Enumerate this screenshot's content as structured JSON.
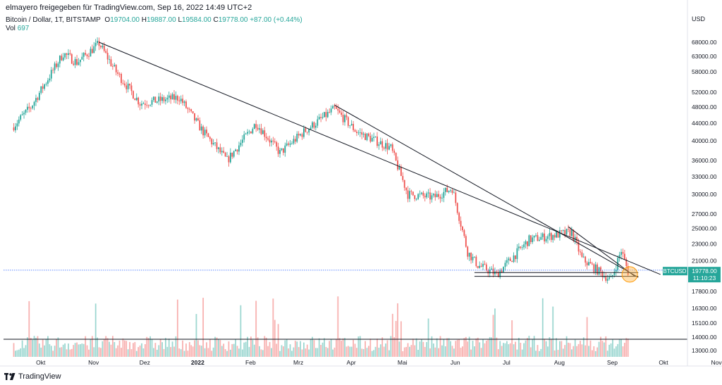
{
  "header": {
    "publish_line": "elmayero freigegeben für TradingView.com, Sep 16, 2022 14:49 UTC+2"
  },
  "legend": {
    "symbol": "Bitcoin / Dollar, 1T, BITSTAMP",
    "o_label": "O",
    "o_value": "19704.00",
    "h_label": "H",
    "h_value": "19887.00",
    "l_label": "L",
    "l_value": "19584.00",
    "c_label": "C",
    "c_value": "19778.00",
    "change": "+87.00 (+0.44%)",
    "vol_label": "Vol",
    "vol_value": "697"
  },
  "footer": {
    "brand": "TradingView"
  },
  "colors": {
    "up": "#26a69a",
    "down": "#ef5350",
    "axis_text": "#131722",
    "price_tag": "#26a69a"
  },
  "chart_data": {
    "type": "candlestick",
    "title": "Bitcoin / Dollar, 1T, BITSTAMP",
    "currency_label": "USD",
    "x_ticks": [
      "Okt",
      "Nov",
      "Dez",
      "2022",
      "Feb",
      "Mrz",
      "Apr",
      "Mai",
      "Jun",
      "Jul",
      "Aug",
      "Sep",
      "Okt",
      "Nov"
    ],
    "y_ticks": [
      "68000.00",
      "63000.00",
      "58000.00",
      "52000.00",
      "48000.00",
      "44000.00",
      "40000.00",
      "36000.00",
      "33000.00",
      "30000.00",
      "27000.00",
      "25000.00",
      "23000.00",
      "21000.00",
      "17800.00",
      "16300.00",
      "15100.00",
      "14000.00",
      "13000.00"
    ],
    "y_scale": "log",
    "last_price": {
      "symbol": "BTCUSD",
      "value": "19778.00",
      "countdown": "11:10:23"
    },
    "series_anchors": [
      {
        "date": "2021-09-20",
        "close": 43000
      },
      {
        "date": "2021-10-01",
        "close": 48000
      },
      {
        "date": "2021-10-10",
        "close": 55000
      },
      {
        "date": "2021-10-20",
        "close": 64000
      },
      {
        "date": "2021-10-28",
        "close": 61000
      },
      {
        "date": "2021-11-10",
        "close": 67500
      },
      {
        "date": "2021-11-20",
        "close": 58000
      },
      {
        "date": "2021-12-04",
        "close": 49000
      },
      {
        "date": "2021-12-27",
        "close": 50500
      },
      {
        "date": "2022-01-10",
        "close": 42000
      },
      {
        "date": "2022-01-24",
        "close": 36000
      },
      {
        "date": "2022-02-10",
        "close": 44000
      },
      {
        "date": "2022-02-24",
        "close": 37500
      },
      {
        "date": "2022-03-10",
        "close": 42000
      },
      {
        "date": "2022-03-28",
        "close": 47500
      },
      {
        "date": "2022-04-10",
        "close": 42000
      },
      {
        "date": "2022-04-30",
        "close": 38500
      },
      {
        "date": "2022-05-10",
        "close": 30000
      },
      {
        "date": "2022-05-25",
        "close": 29500
      },
      {
        "date": "2022-06-05",
        "close": 31000
      },
      {
        "date": "2022-06-14",
        "close": 22000
      },
      {
        "date": "2022-06-20",
        "close": 20500
      },
      {
        "date": "2022-07-01",
        "close": 19500
      },
      {
        "date": "2022-07-20",
        "close": 23500
      },
      {
        "date": "2022-08-14",
        "close": 24500
      },
      {
        "date": "2022-08-20",
        "close": 21200
      },
      {
        "date": "2022-09-06",
        "close": 18900
      },
      {
        "date": "2022-09-12",
        "close": 22200
      },
      {
        "date": "2022-09-16",
        "close": 19778
      }
    ],
    "trendlines": [
      {
        "from": {
          "date": "2021-11-10",
          "price": 68000
        },
        "to": {
          "date": "2022-10-05",
          "price": 19500
        }
      },
      {
        "from": {
          "date": "2022-03-28",
          "price": 48500
        },
        "to": {
          "date": "2022-09-22",
          "price": 19200
        }
      },
      {
        "from": {
          "date": "2022-08-12",
          "price": 25200
        },
        "to": {
          "date": "2022-09-20",
          "price": 19300
        }
      }
    ],
    "horizontal_lines": [
      {
        "price": 19950,
        "style": "dotted",
        "from_date": "2021-09-15",
        "to_date": "2022-10-12"
      },
      {
        "price": 19700,
        "style": "solid",
        "from_date": "2022-06-18",
        "to_date": "2022-09-22"
      },
      {
        "price": 19300,
        "style": "solid",
        "from_date": "2022-06-18",
        "to_date": "2022-09-22"
      },
      {
        "price": 13700,
        "style": "solid",
        "from_date": "2021-09-15",
        "to_date": "2022-11-30"
      }
    ],
    "highlight_circle": {
      "date": "2022-09-17",
      "price": 19500
    }
  }
}
